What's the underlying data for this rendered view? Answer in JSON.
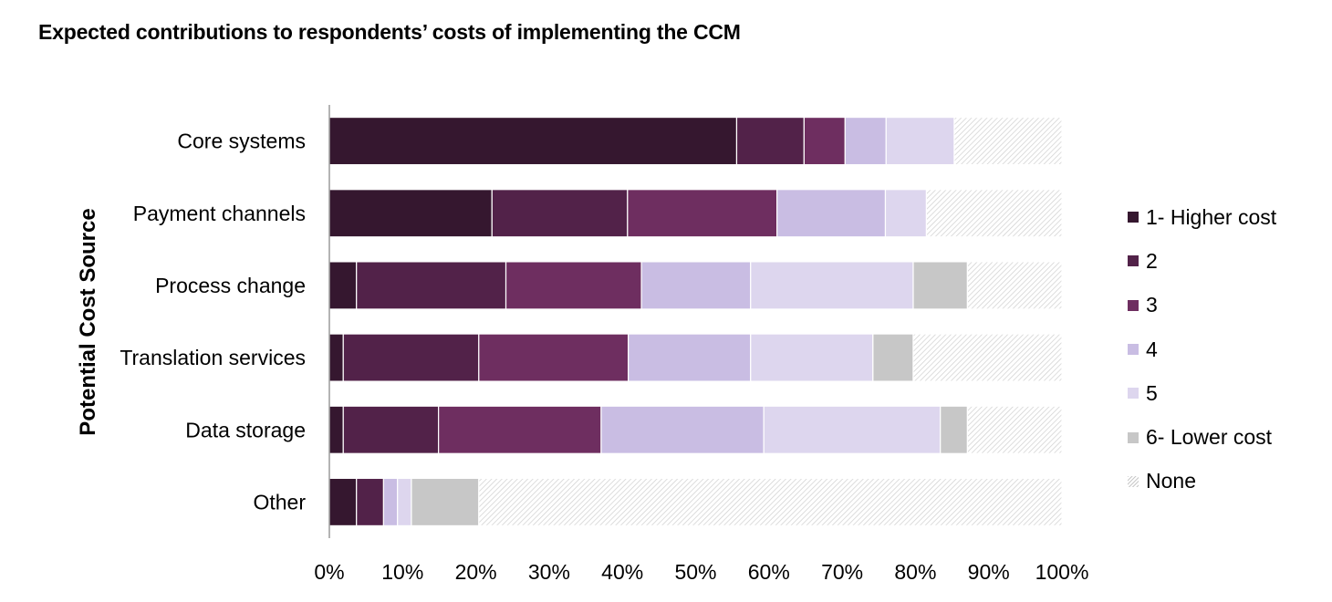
{
  "chart_data": {
    "type": "bar",
    "orientation": "horizontal",
    "stacked": "percent",
    "title": "Expected contributions to respondents’ costs of implementing the CCM",
    "ylabel": "Potential Cost Source",
    "xlabel": "",
    "xlim": [
      0,
      100
    ],
    "x_ticks": [
      "0%",
      "10%",
      "20%",
      "30%",
      "40%",
      "50%",
      "60%",
      "70%",
      "80%",
      "90%",
      "100%"
    ],
    "grid": false,
    "legend_position": "right",
    "categories": [
      "Core systems",
      "Payment channels",
      "Process change",
      "Translation services",
      "Data storage",
      "Other"
    ],
    "series": [
      {
        "name": "1- Higher cost",
        "color": "#35172f",
        "pattern": "solid",
        "values": [
          55.6,
          22.2,
          3.7,
          1.9,
          1.9,
          3.7
        ]
      },
      {
        "name": "2",
        "color": "#522249",
        "pattern": "solid",
        "values": [
          9.2,
          18.5,
          20.4,
          18.5,
          13.0,
          3.7
        ]
      },
      {
        "name": "3",
        "color": "#6e2e60",
        "pattern": "solid",
        "values": [
          5.6,
          20.4,
          18.5,
          20.4,
          22.2,
          0.0
        ]
      },
      {
        "name": "4",
        "color": "#c9bde3",
        "pattern": "solid",
        "values": [
          5.6,
          14.8,
          14.9,
          16.7,
          22.2,
          1.9
        ]
      },
      {
        "name": "5",
        "color": "#ddd6ee",
        "pattern": "solid",
        "values": [
          9.3,
          5.6,
          22.2,
          16.7,
          24.1,
          1.9
        ]
      },
      {
        "name": "6- Lower cost",
        "color": "#c7c7c7",
        "pattern": "solid",
        "values": [
          0.0,
          0.0,
          7.4,
          5.5,
          3.7,
          9.2
        ]
      },
      {
        "name": "None",
        "color": "#d8d8d8",
        "pattern": "hatch",
        "values": [
          14.7,
          18.5,
          12.9,
          20.3,
          12.9,
          79.6
        ]
      }
    ]
  }
}
